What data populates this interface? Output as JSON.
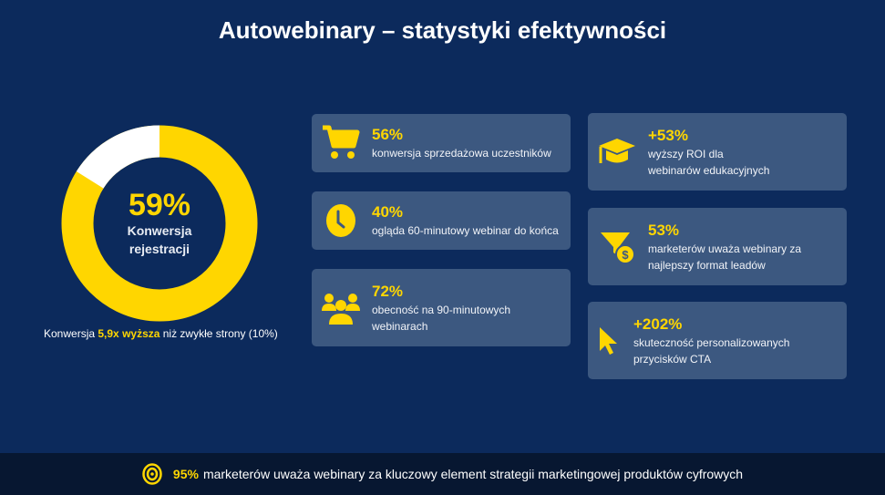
{
  "title": "Autowebinary – statystyki efektywności",
  "donut": {
    "value": "59%",
    "label_line1": "Konwersja",
    "label_line2": "rejestracji",
    "color": "#ffd600",
    "rest_color": "#ffffff"
  },
  "note": {
    "prefix": "Konwersja ",
    "highlight": "5,9x wyższa",
    "suffix": " niż zwykłe strony (10%)"
  },
  "cards": [
    {
      "icon": "cart-icon",
      "value": "56%",
      "text": "konwersja sprzedażowa uczestników"
    },
    {
      "icon": "clock-icon",
      "value": "40%",
      "text": "ogląda 60-minutowy webinar do końca"
    },
    {
      "icon": "users-icon",
      "value": "72%",
      "text": "obecność na 90-minutowych webinarach"
    },
    {
      "icon": "graduation-cap-icon",
      "value": "+53%",
      "text": "wyższy ROI dla webinarów edukacyjnych"
    },
    {
      "icon": "funnel-dollar-icon",
      "value": "53%",
      "text": "marketerów uważa webinary za najlepszy format leadów"
    },
    {
      "icon": "cursor-icon",
      "value": "+202%",
      "text": "skuteczność personalizowanych przycisków CTA"
    }
  ],
  "footer": {
    "icon": "target-icon",
    "highlight": "95%",
    "text": "marketerów uważa webinary za kluczowy element strategii marketingowej produktów cyfrowych"
  },
  "colors": {
    "background": "#0c2a5c",
    "card": "#3c5880",
    "accent": "#ffd600",
    "footer": "#071731"
  }
}
